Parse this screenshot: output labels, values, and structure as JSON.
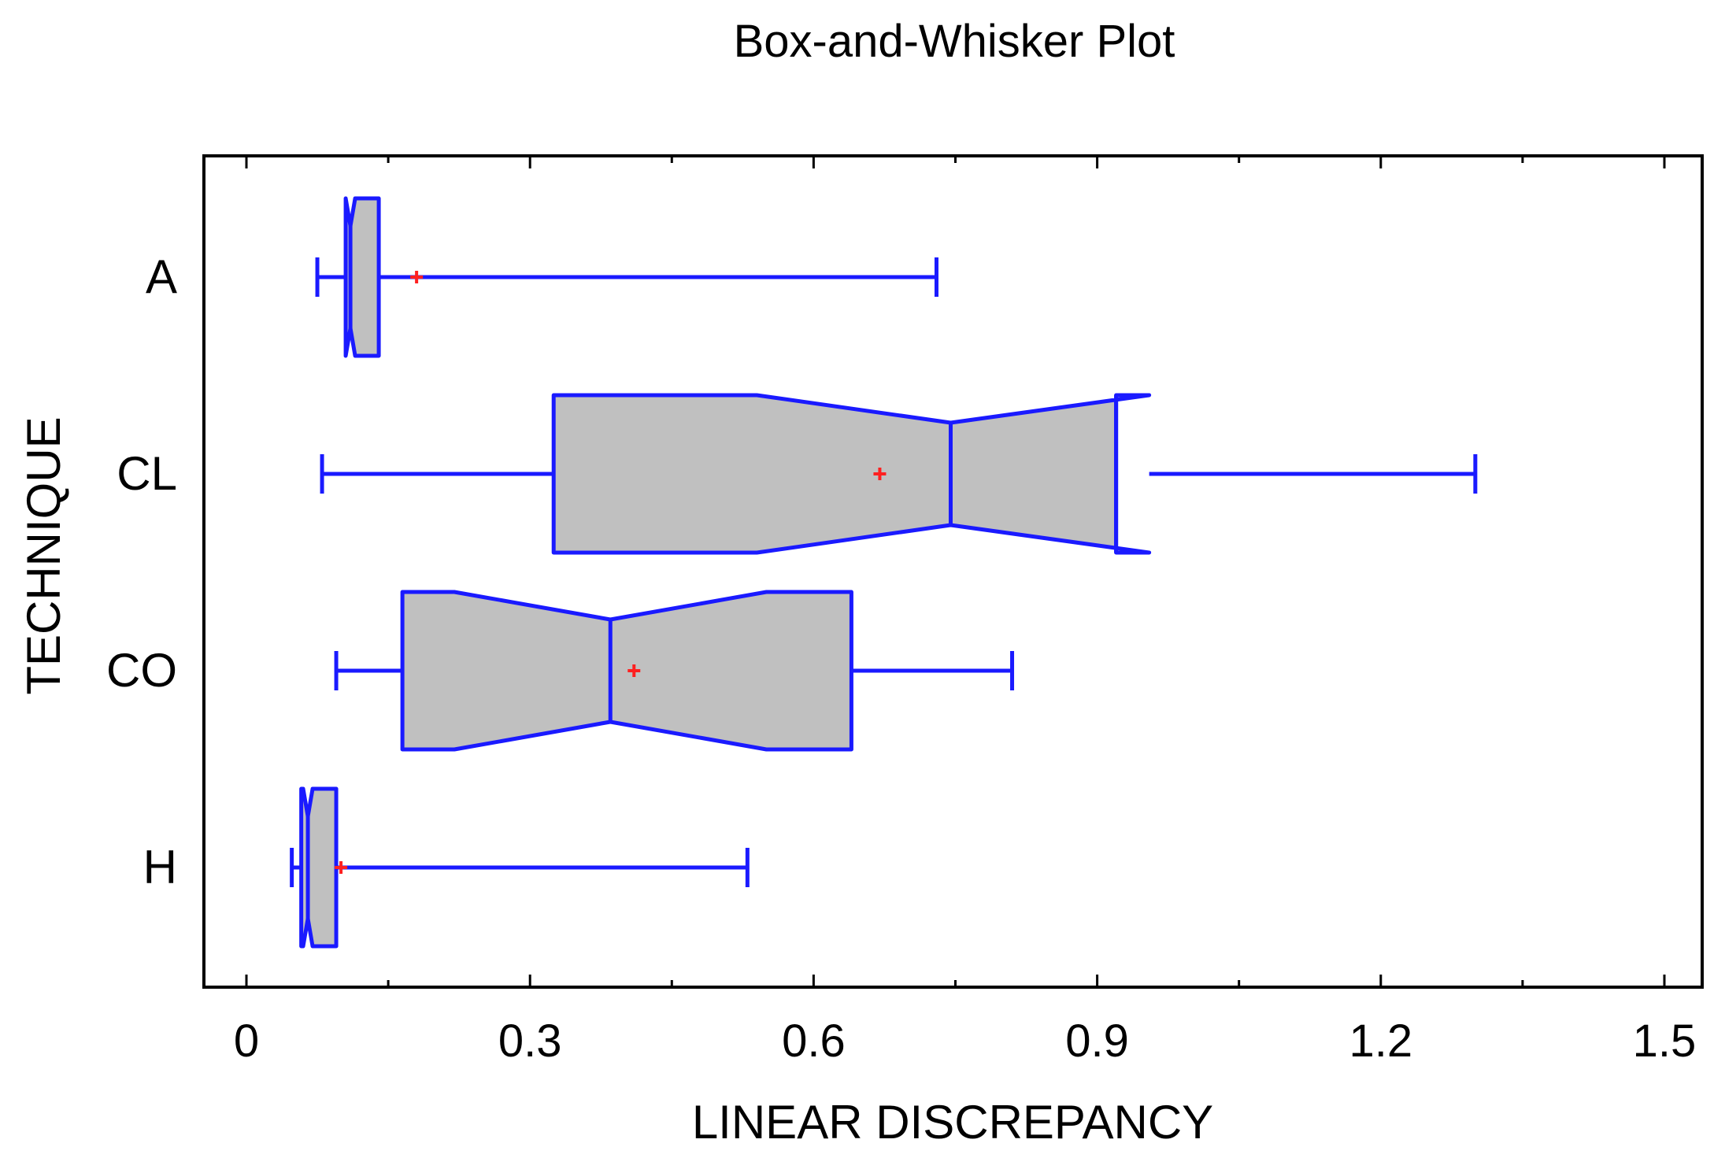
{
  "chart_data": {
    "type": "box",
    "title": "Box-and-Whisker Plot",
    "xlabel": "LINEAR DISCREPANCY",
    "ylabel": "TECHNIQUE",
    "xlim": [
      -0.05,
      1.55
    ],
    "xticks": [
      "0",
      "0.3",
      "0.6",
      "0.9",
      "1.2",
      "1.5"
    ],
    "xtick_values": [
      0,
      0.3,
      0.6,
      0.9,
      1.2,
      1.5
    ],
    "orientation": "horizontal",
    "notched": true,
    "grid": false,
    "categories": [
      "A",
      "CL",
      "CO",
      "H"
    ],
    "boxes": [
      {
        "label": "A",
        "whisker_low": 0.075,
        "q1": 0.105,
        "median": 0.11,
        "q3": 0.14,
        "whisker_high": 0.73,
        "notch_low": 0.105,
        "notch_high": 0.115,
        "mean": 0.18
      },
      {
        "label": "CL",
        "whisker_low": 0.08,
        "q1": 0.325,
        "median": 0.745,
        "q3": 0.92,
        "whisker_high": 1.3,
        "notch_low": 0.54,
        "notch_high": 0.955,
        "mean": 0.67
      },
      {
        "label": "CO",
        "whisker_low": 0.095,
        "q1": 0.165,
        "median": 0.385,
        "q3": 0.64,
        "whisker_high": 0.81,
        "notch_low": 0.22,
        "notch_high": 0.55,
        "mean": 0.41
      },
      {
        "label": "H",
        "whisker_low": 0.048,
        "q1": 0.058,
        "median": 0.065,
        "q3": 0.095,
        "whisker_high": 0.53,
        "notch_low": 0.06,
        "notch_high": 0.07,
        "mean": 0.1
      }
    ],
    "colors": {
      "box_fill": "#c0c0c0",
      "box_stroke": "#1a1aff",
      "mean_marker": "#ff2020",
      "axis": "#000000"
    }
  }
}
